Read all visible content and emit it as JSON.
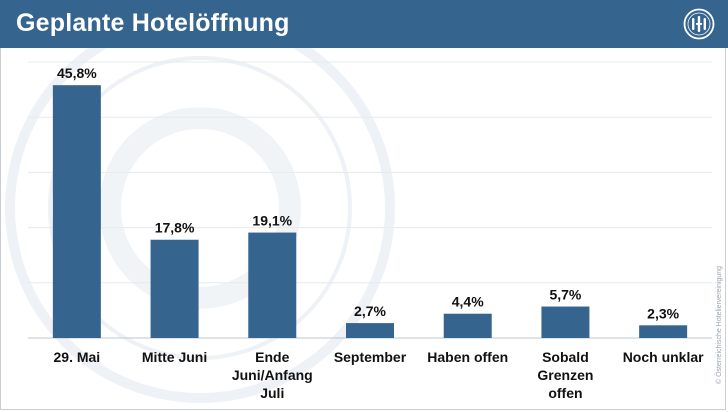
{
  "header": {
    "title": "Geplante Hotelöffnung",
    "background_color": "#35648f",
    "logo_text": "öHV"
  },
  "copyright": "© Österreichische Hoteliervereinigung",
  "chart_data": {
    "type": "bar",
    "categories": [
      "29. Mai",
      "Mitte Juni",
      "Ende Juni/Anfang Juli",
      "September",
      "Haben offen",
      "Sobald Grenzen offen",
      "Noch unklar"
    ],
    "category_lines": [
      [
        "29. Mai"
      ],
      [
        "Mitte Juni"
      ],
      [
        "Ende",
        "Juni/Anfang",
        "Juli"
      ],
      [
        "September"
      ],
      [
        "Haben offen"
      ],
      [
        "Sobald",
        "Grenzen",
        "offen"
      ],
      [
        "Noch unklar"
      ]
    ],
    "values": [
      45.8,
      17.8,
      19.1,
      2.7,
      4.4,
      5.7,
      2.3
    ],
    "value_labels": [
      "45,8%",
      "17,8%",
      "19,1%",
      "2,7%",
      "4,4%",
      "5,7%",
      "2,3%"
    ],
    "ylim": [
      0,
      50
    ],
    "grid": true,
    "bar_color": "#35648f",
    "title": "Geplante Hotelöffnung",
    "xlabel": "",
    "ylabel": ""
  }
}
